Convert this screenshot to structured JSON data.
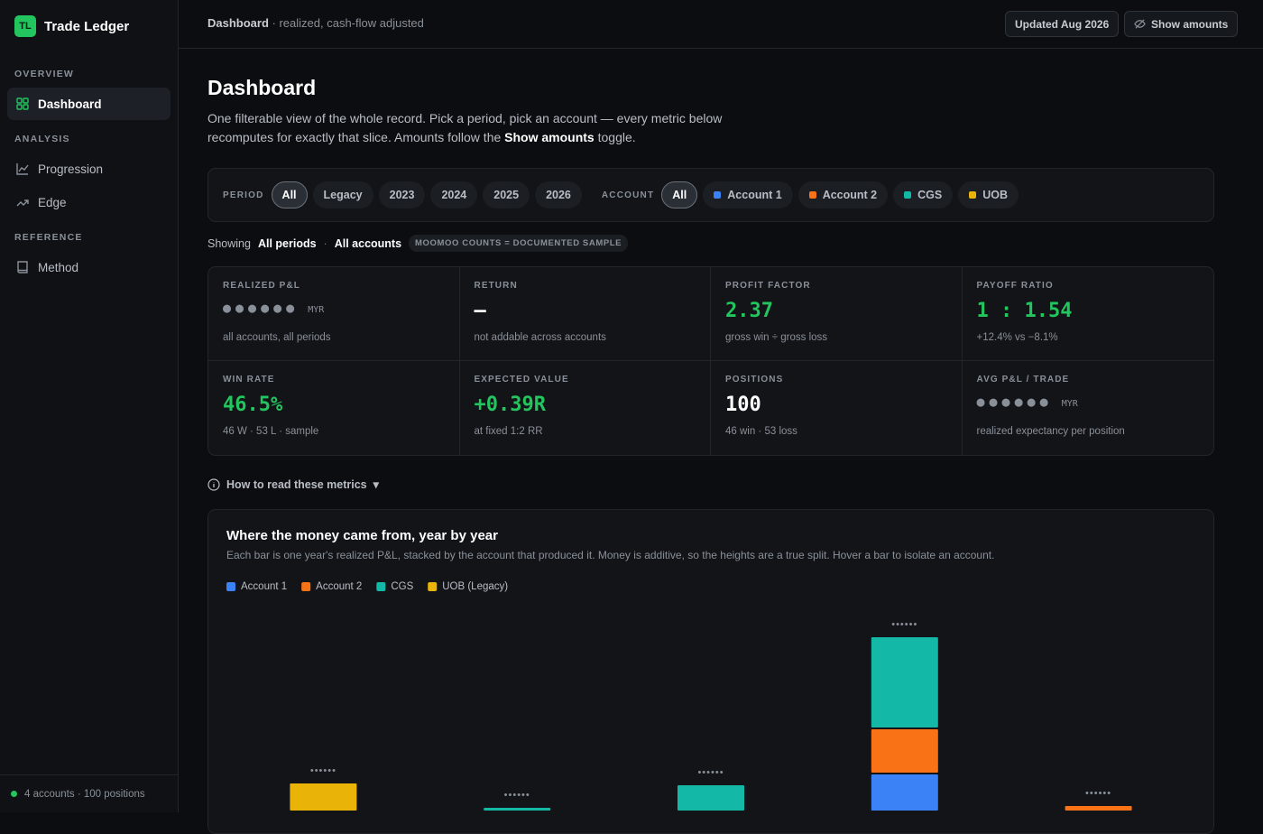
{
  "sidebar": {
    "logo": "TL",
    "brand": "Trade Ledger",
    "sections": [
      {
        "heading": "OVERVIEW",
        "items": [
          "Dashboard"
        ]
      },
      {
        "heading": "ANALYSIS",
        "items": [
          "Progression",
          "Edge"
        ]
      },
      {
        "heading": "REFERENCE",
        "items": [
          "Method"
        ]
      }
    ],
    "footer": "4 accounts · 100 positions"
  },
  "topbar": {
    "title": "Dashboard",
    "subtitle": "· realized, cash-flow adjusted",
    "updated": "Updated Aug 2026",
    "toggle": "Show amounts"
  },
  "page": {
    "title": "Dashboard",
    "description": [
      "One filterable view of the whole record. Pick a period, pick an account — every metric below recomputes for exactly that slice. Amounts follow the ",
      "Show amounts",
      " toggle."
    ]
  },
  "filters": {
    "period_label": "PERIOD",
    "periods": [
      "All",
      "Legacy",
      "2023",
      "2024",
      "2025",
      "2026"
    ],
    "account_label": "ACCOUNT",
    "accounts": [
      {
        "name": "All"
      },
      {
        "name": "Account 1",
        "color": "#3b82f6"
      },
      {
        "name": "Account 2",
        "color": "#f97316"
      },
      {
        "name": "CGS",
        "color": "#14b8a6"
      },
      {
        "name": "UOB",
        "color": "#eab308"
      }
    ]
  },
  "showing": {
    "label": "Showing",
    "period": "All periods",
    "separator": "·",
    "account": "All accounts",
    "badge": "MOOMOO COUNTS = DOCUMENTED SAMPLE"
  },
  "metrics": [
    {
      "label": "REALIZED P&L",
      "value": "●●●●●●",
      "unit": "MYR",
      "note": "all accounts, all periods",
      "color": "#8a9099"
    },
    {
      "label": "RETURN",
      "value": "—",
      "note": "not addable across accounts",
      "color": "#ffffff"
    },
    {
      "label": "PROFIT FACTOR",
      "value": "2.37",
      "note": "gross win ÷ gross loss",
      "color": "#22c55e"
    },
    {
      "label": "PAYOFF RATIO",
      "value": "1 : 1.54",
      "note": "+12.4% vs −8.1%",
      "color": "#22c55e"
    },
    {
      "label": "WIN RATE",
      "value": "46.5%",
      "note": "46 W · 53 L · sample",
      "color": "#22c55e"
    },
    {
      "label": "EXPECTED VALUE",
      "value": "+0.39R",
      "note": "at fixed 1:2 RR",
      "color": "#22c55e"
    },
    {
      "label": "POSITIONS",
      "value": "100",
      "note": "46 win · 53 loss",
      "color": "#ffffff"
    },
    {
      "label": "AVG P&L / TRADE",
      "value": "●●●●●●",
      "unit": "MYR",
      "note": "realized expectancy per position",
      "color": "#8a9099"
    }
  ],
  "help": {
    "text": "How to read these metrics",
    "caret": "▾"
  },
  "chart_data": {
    "type": "bar",
    "stacked": true,
    "title": "Where the money came from, year by year",
    "subtitle": "Each bar is one year's realized P&L, stacked by the account that produced it. Money is additive, so the heights are a true split. Hover a bar to isolate an account.",
    "categories": [
      null,
      null,
      null,
      null,
      null
    ],
    "series": [
      {
        "name": "Account 1",
        "color": "#3b82f6",
        "values": [
          null,
          null,
          null,
          40,
          null
        ]
      },
      {
        "name": "Account 2",
        "color": "#f97316",
        "values": [
          null,
          null,
          null,
          50,
          5
        ]
      },
      {
        "name": "CGS",
        "color": "#14b8a6",
        "values": [
          null,
          3,
          28,
          102,
          null
        ]
      },
      {
        "name": "UOB (Legacy)",
        "color": "#eab308",
        "values": [
          30,
          null,
          null,
          null,
          null
        ]
      }
    ],
    "total_labels": [
      "••••••",
      "••••••",
      "••••••",
      "••••••",
      "••••••"
    ],
    "ylim": [
      0,
      220
    ]
  }
}
